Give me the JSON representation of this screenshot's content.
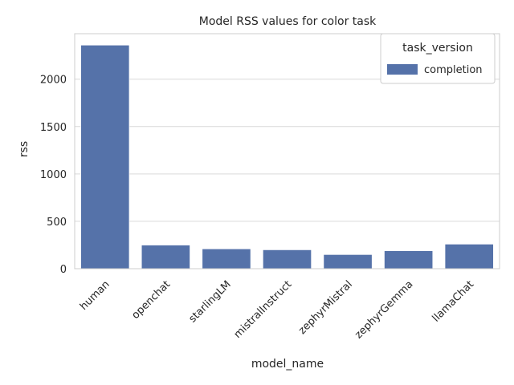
{
  "chart_data": {
    "type": "bar",
    "title": "Model RSS values for color task",
    "xlabel": "model_name",
    "ylabel": "rss",
    "categories": [
      "human",
      "openchat",
      "starlingLM",
      "mistralInstruct",
      "zephyrMistral",
      "zephyrGemma",
      "llamaChat"
    ],
    "series": [
      {
        "name": "completion",
        "values": [
          2360,
          250,
          210,
          200,
          150,
          190,
          260
        ]
      }
    ],
    "ylim": [
      0,
      2480
    ],
    "yticks": [
      0,
      500,
      1000,
      1500,
      2000
    ],
    "grid": "horizontal",
    "legend": {
      "title": "task_version",
      "placement": "top-right"
    },
    "colors": {
      "bar": "#5572a9",
      "grid": "#d9d9d9",
      "axis": "#cccccc"
    }
  }
}
